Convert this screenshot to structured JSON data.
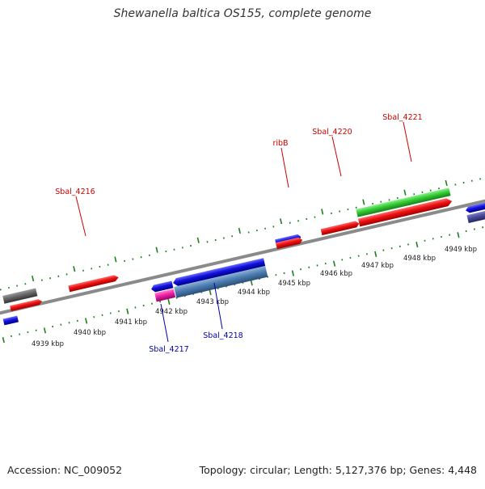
{
  "title": "Shewanella baltica OS155, complete genome",
  "footer": {
    "accession": "Accession: NC_009052",
    "summary": "Topology: circular; Length: 5,127,376 bp; Genes: 4,448"
  },
  "colors": {
    "backbone": "#8a8a8a",
    "tick": "#1f7f1f",
    "forward_label": "#cc0000",
    "reverse_label": "#0000aa",
    "cds": "#ee1111",
    "gene": "#1111dd",
    "rrna": "#33cc33",
    "trna": "#ee22aa",
    "pseudo": "#666666",
    "misc": "#4f7fb3",
    "other": "#4a4a99"
  },
  "kbp_ticks": [
    "4939 kbp",
    "4940 kbp",
    "4941 kbp",
    "4942 kbp",
    "4943 kbp",
    "4944 kbp",
    "4945 kbp",
    "4946 kbp",
    "4947 kbp",
    "4948 kbp",
    "4949 kbp"
  ],
  "gene_labels": {
    "forward": [
      "Sbal_4216",
      "ribB",
      "Sbal_4220",
      "Sbal_4221"
    ],
    "reverse": [
      "Sbal_4217",
      "Sbal_4218"
    ]
  }
}
